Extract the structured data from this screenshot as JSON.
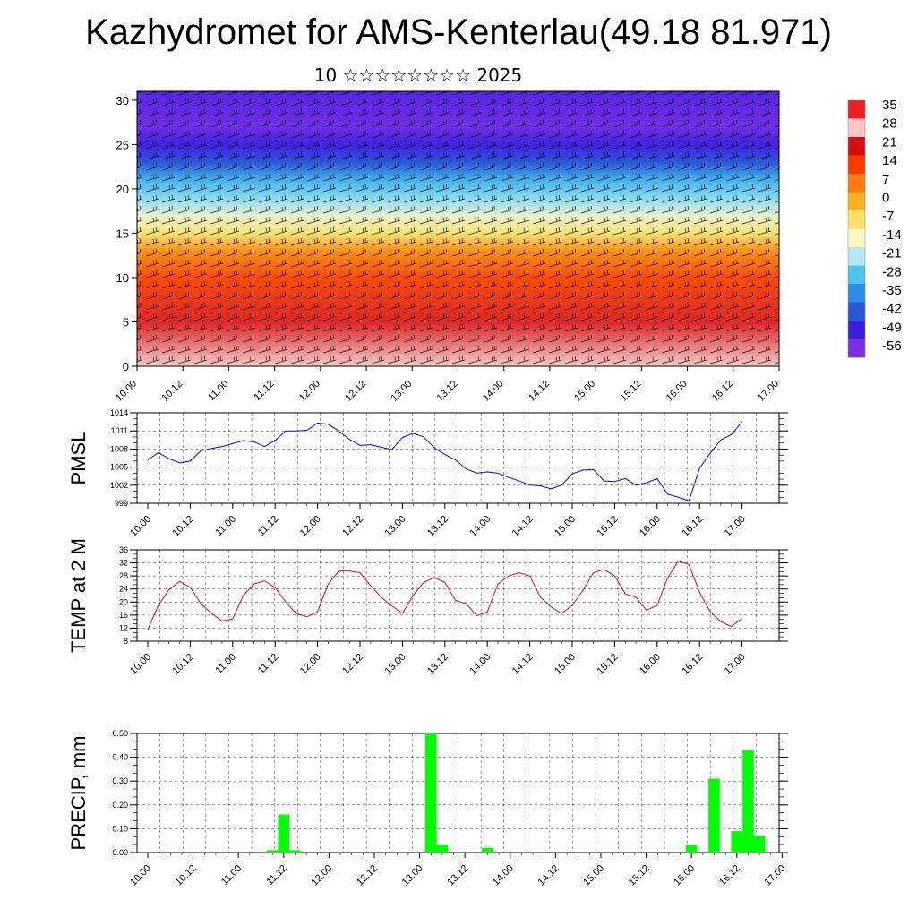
{
  "header": {
    "title": "Kazhydromet for AMS-Kenterlau(49.18 81.971)",
    "subtitle": "10 ☆☆☆☆☆☆☆☆ 2025"
  },
  "colorbar": {
    "labels": [
      "35",
      "28",
      "21",
      "14",
      "7",
      "0",
      "-7",
      "-14",
      "-21",
      "-28",
      "-35",
      "-42",
      "-49",
      "-56"
    ],
    "colors": [
      "#ef1f1f",
      "#f8c8c8",
      "#d70c0c",
      "#ff3a00",
      "#ff7a10",
      "#ffb020",
      "#ffe06a",
      "#fff6c0",
      "#b5e8f5",
      "#4cc3f0",
      "#2c8ce6",
      "#2858d8",
      "#3a1fe0",
      "#7a2fe6"
    ]
  },
  "x_ticks": [
    "10.00",
    "10.12",
    "11.00",
    "11.12",
    "12.00",
    "12.12",
    "13.00",
    "13.12",
    "14.00",
    "14.12",
    "15.00",
    "15.12",
    "16.00",
    "16.12",
    "17.00"
  ],
  "chart_data": [
    {
      "type": "heatmap",
      "title": "",
      "ylim": [
        0,
        31
      ],
      "y_ticks": [
        "0",
        "5",
        "10",
        "15",
        "20",
        "25",
        "30"
      ],
      "x_ticks": [
        "10.00",
        "10.12",
        "11.00",
        "11.12",
        "12.00",
        "12.12",
        "13.00",
        "13.12",
        "14.00",
        "14.12",
        "15.00",
        "15.12",
        "16.00",
        "16.12",
        "17.00"
      ],
      "profile": {
        "levels": [
          0,
          5,
          10,
          13,
          15,
          17,
          19,
          21,
          23,
          25,
          27,
          31
        ],
        "values": [
          28,
          22,
          12,
          4,
          -8,
          -16,
          -24,
          -30,
          -42,
          -50,
          -55,
          -52
        ]
      },
      "colorbar_range": [
        -56,
        35
      ]
    },
    {
      "type": "line",
      "ylabel": "PMSL",
      "ylim": [
        999,
        1014
      ],
      "y_ticks": [
        "999",
        "1002",
        "1005",
        "1008",
        "1011",
        "1014"
      ],
      "x_ticks": [
        "10.00",
        "10.12",
        "11.00",
        "11.12",
        "12.00",
        "12.12",
        "13.00",
        "13.12",
        "14.00",
        "14.12",
        "15.00",
        "15.12",
        "16.00",
        "16.12",
        "17.00"
      ],
      "x": [
        0,
        3,
        6,
        9,
        12,
        15,
        18,
        21,
        24,
        27,
        30,
        33,
        36,
        39,
        42,
        45,
        48,
        51,
        54,
        57,
        60,
        63,
        66,
        69,
        72,
        75,
        78,
        81,
        84,
        87,
        90,
        93,
        96,
        99,
        102,
        105,
        108,
        111,
        114,
        117,
        120,
        123,
        126,
        129,
        132,
        135,
        138,
        141,
        144,
        147,
        150,
        153,
        156,
        159,
        162,
        165,
        168
      ],
      "series": [
        {
          "color": "#0000ff",
          "values": [
            1006.2,
            1007.4,
            1006.4,
            1005.7,
            1006.0,
            1007.7,
            1008.1,
            1008.4,
            1008.9,
            1009.4,
            1009.2,
            1008.4,
            1009.4,
            1011.0,
            1011.0,
            1011.1,
            1012.3,
            1012.1,
            1011.0,
            1009.6,
            1008.6,
            1008.7,
            1008.3,
            1007.9,
            1009.9,
            1010.6,
            1010.0,
            1008.2,
            1007.1,
            1006.2,
            1004.7,
            1004.0,
            1004.2,
            1004.0,
            1003.3,
            1002.7,
            1002.0,
            1001.9,
            1001.4,
            1002.0,
            1003.9,
            1004.5,
            1004.6,
            1002.7,
            1002.6,
            1003.1,
            1002.0,
            1002.4,
            1003.1,
            1000.5,
            1000.0,
            999.4,
            1004.8,
            1007.3,
            1009.5,
            1010.4,
            1012.5
          ]
        }
      ]
    },
    {
      "type": "line",
      "ylabel": "TEMP at 2 M",
      "ylim": [
        8,
        36
      ],
      "y_ticks": [
        "8",
        "12",
        "16",
        "20",
        "24",
        "28",
        "32",
        "36"
      ],
      "x_ticks": [
        "10.00",
        "10.12",
        "11.00",
        "11.12",
        "12.00",
        "12.12",
        "13.00",
        "13.12",
        "14.00",
        "14.12",
        "15.00",
        "15.12",
        "16.00",
        "16.12",
        "17.00"
      ],
      "x": [
        0,
        3,
        6,
        9,
        12,
        15,
        18,
        21,
        24,
        27,
        30,
        33,
        36,
        39,
        42,
        45,
        48,
        51,
        54,
        57,
        60,
        63,
        66,
        69,
        72,
        75,
        78,
        81,
        84,
        87,
        90,
        93,
        96,
        99,
        102,
        105,
        108,
        111,
        114,
        117,
        120,
        123,
        126,
        129,
        132,
        135,
        138,
        141,
        144,
        147,
        150,
        153,
        156,
        159,
        162,
        165,
        168
      ],
      "series": [
        {
          "color": "#ff0000",
          "values": [
            11.5,
            19.0,
            23.8,
            26.3,
            24.5,
            19.5,
            16.5,
            14.2,
            14.8,
            22.0,
            25.5,
            26.5,
            24.5,
            20.0,
            16.5,
            15.5,
            17.0,
            25.5,
            29.5,
            29.5,
            29.0,
            25.0,
            21.5,
            18.8,
            16.5,
            22.0,
            26.0,
            27.5,
            26.0,
            20.5,
            19.5,
            15.8,
            17.0,
            25.5,
            28.0,
            29.0,
            28.0,
            21.5,
            18.5,
            16.5,
            19.0,
            23.5,
            29.0,
            30.0,
            28.0,
            22.5,
            21.5,
            17.5,
            19.0,
            27.5,
            32.5,
            31.5,
            23.0,
            17.0,
            14.0,
            12.5,
            15.0
          ]
        }
      ]
    },
    {
      "type": "bar",
      "ylabel": "PRECIP, mm",
      "ylim": [
        0,
        0.5
      ],
      "y_ticks": [
        "0.00",
        "0.10",
        "0.20",
        "0.30",
        "0.40",
        "0.50"
      ],
      "x_ticks": [
        "10.00",
        "10.12",
        "11.00",
        "11.12",
        "12.00",
        "12.12",
        "13.00",
        "13.12",
        "14.00",
        "14.12",
        "15.00",
        "15.12",
        "16.00",
        "16.12",
        "17.00"
      ],
      "color": "#00ff00",
      "x": [
        33,
        36,
        39,
        75,
        78,
        90,
        144,
        150,
        156,
        159,
        162
      ],
      "values": [
        0.01,
        0.16,
        0.01,
        0.5,
        0.03,
        0.02,
        0.03,
        0.31,
        0.09,
        0.43,
        0.07
      ]
    }
  ]
}
